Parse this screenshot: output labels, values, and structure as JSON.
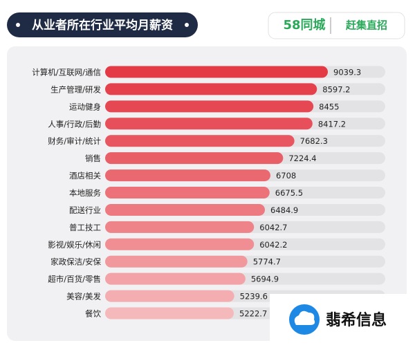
{
  "chart_data": {
    "type": "hbar",
    "title": "从业者所在行业平均月薪资",
    "logo_left": "58同城",
    "logo_right": "赶集直招",
    "watermark": "翡希信息",
    "categories": [
      "计算机/互联网/通信",
      "生产管理/研发",
      "运动健身",
      "人事/行政/后勤",
      "财务/审计/统计",
      "销售",
      "酒店相关",
      "本地服务",
      "配送行业",
      "普工技工",
      "影视/娱乐/休闲",
      "家政保洁/安保",
      "超市/百货/零售",
      "美容/美发",
      "餐饮"
    ],
    "values": [
      9039.3,
      8597.2,
      8455,
      8417.2,
      7682.3,
      7224.4,
      6708,
      6675.5,
      6484.9,
      6042.7,
      6042.2,
      5774.7,
      5694.9,
      5239.6,
      5222.7
    ],
    "colors": [
      "#e43a45",
      "#e5414c",
      "#e64853",
      "#e74f5a",
      "#e85761",
      "#e95f68",
      "#ea6870",
      "#ec7178",
      "#ed7a81",
      "#ee848a",
      "#f08e93",
      "#f1989c",
      "#f3a3a7",
      "#f4aeb1",
      "#f5b9bc"
    ],
    "track_color": "#e3e3e5"
  }
}
